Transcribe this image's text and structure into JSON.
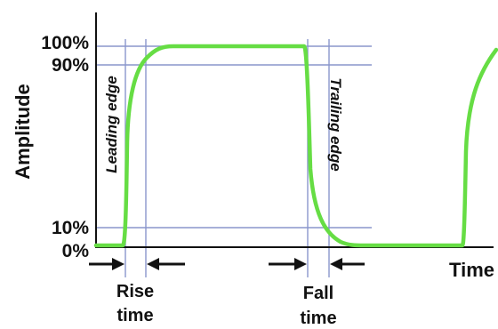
{
  "diagram": {
    "axes": {
      "y_label": "Amplitude",
      "x_label": "Time"
    },
    "level_labels": {
      "p100": "100%",
      "p90": "90%",
      "p10": "10%",
      "p0": "0%"
    },
    "edges": {
      "leading": "Leading edge",
      "trailing": "Trailing edge"
    },
    "annotations": {
      "rise_line1": "Rise",
      "rise_line2": "time",
      "fall_line1": "Fall",
      "fall_line2": "time"
    },
    "colors": {
      "waveform": "#66dd44",
      "guide_lines": "#8a96cc",
      "axis": "#111111",
      "arrows": "#111111",
      "text": "#111111"
    }
  }
}
